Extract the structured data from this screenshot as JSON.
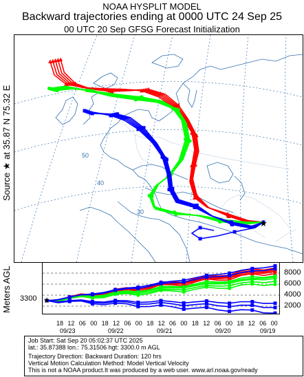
{
  "header": {
    "line1": "NOAA HYSPLIT MODEL",
    "line2": "Backward trajectories ending at 0000 UTC 24 Sep 25",
    "line3": "00 UTC 20 Sep    GFSG  Forecast Initialization"
  },
  "source_label": "Source ★ at   35.87 N   75.32 E",
  "height_axis_label": "Meters AGL",
  "map": {
    "grid_labels": [
      "50",
      "40",
      "30"
    ]
  },
  "height_panel": {
    "start_height_label": "3300",
    "y_ticks": [
      "8000",
      "6000",
      "4000",
      "2000"
    ],
    "hour_ticks": [
      "18",
      "12",
      "06",
      "00",
      "18",
      "12",
      "06",
      "00",
      "18",
      "12",
      "06",
      "00",
      "18",
      "12",
      "06",
      "00",
      "18",
      "12",
      "06",
      "00"
    ],
    "date_labels": [
      "09/23",
      "09/22",
      "09/21",
      "09/20",
      "09/19"
    ]
  },
  "footer": {
    "line1": "Job Start: Sat Sep 20 05:02:37 UTC 2025",
    "line2": "lat.: 35.87388   lon.: 75.31506    hgt: 3300.0 m AGL",
    "line3": "Trajectory Direction: Backward       Duration: 120 hrs",
    "line4": "Vertical Motion Calculation Method: Model Vertical Velocity",
    "line5": "This is not a NOAA product.It was produced by a web user. www.arl.noaa.gov/ready"
  },
  "colors": {
    "red": "#ff0000",
    "blue": "#0000ff",
    "green": "#00ff00",
    "map_lines": "#2f6fb0"
  }
}
